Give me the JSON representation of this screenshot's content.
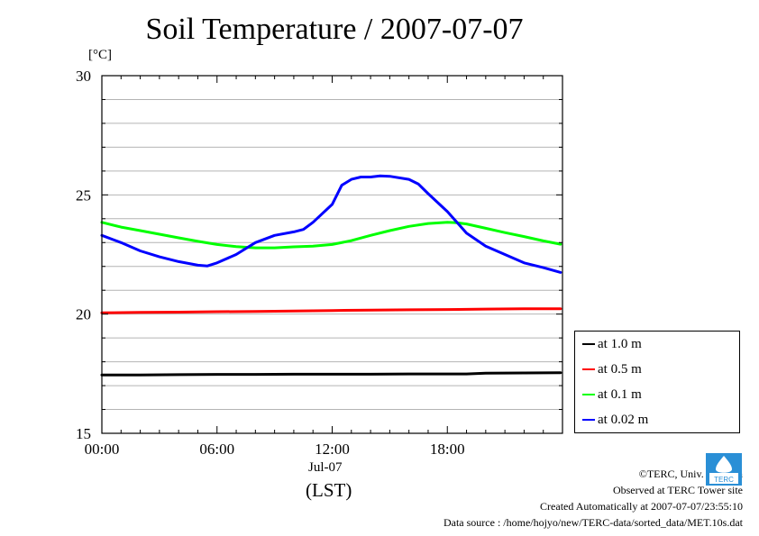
{
  "chart_data": {
    "type": "line",
    "title": "Soil Temperature / 2007-07-07",
    "ylabel": "[°C]",
    "xlabel": "(LST)",
    "date_label": "Jul-07",
    "ylim": [
      15,
      30
    ],
    "xlim": [
      0,
      24
    ],
    "yticks": [
      15,
      20,
      25,
      30
    ],
    "xticks": [
      0,
      6,
      12,
      18
    ],
    "xtick_labels": [
      "00:00",
      "06:00",
      "12:00",
      "18:00"
    ],
    "grid": true,
    "legend_position": "bottom-right, outside plot",
    "series": [
      {
        "name": "at 1.0 m",
        "color": "#000000",
        "x": [
          0,
          2,
          4,
          6,
          8,
          10,
          12,
          14,
          16,
          18,
          19,
          20,
          22,
          23.9
        ],
        "y": [
          17.45,
          17.45,
          17.46,
          17.47,
          17.47,
          17.48,
          17.48,
          17.48,
          17.49,
          17.49,
          17.49,
          17.52,
          17.53,
          17.54
        ]
      },
      {
        "name": "at 0.5 m",
        "color": "#ff0000",
        "x": [
          0,
          2,
          4,
          6,
          8,
          10,
          12,
          14,
          16,
          18,
          20,
          22,
          23.9
        ],
        "y": [
          20.05,
          20.07,
          20.08,
          20.1,
          20.11,
          20.13,
          20.15,
          20.17,
          20.18,
          20.19,
          20.21,
          20.22,
          20.22
        ]
      },
      {
        "name": "at 0.1 m",
        "color": "#00ff00",
        "x": [
          0,
          1,
          2,
          3,
          4,
          5,
          6,
          7,
          8,
          9,
          10,
          11,
          12,
          13,
          14,
          15,
          16,
          17,
          18,
          18.5,
          19,
          20,
          21,
          22,
          23,
          23.9
        ],
        "y": [
          23.85,
          23.65,
          23.5,
          23.35,
          23.2,
          23.05,
          22.92,
          22.83,
          22.78,
          22.78,
          22.82,
          22.85,
          22.92,
          23.08,
          23.3,
          23.5,
          23.68,
          23.8,
          23.85,
          23.83,
          23.78,
          23.6,
          23.42,
          23.25,
          23.07,
          22.93
        ]
      },
      {
        "name": "at 0.02 m",
        "color": "#0000ff",
        "x": [
          0,
          1,
          2,
          3,
          4,
          5,
          5.5,
          6,
          7,
          8,
          9,
          10,
          10.5,
          11,
          12,
          12.5,
          13,
          13.5,
          14,
          14.5,
          15,
          16,
          16.5,
          17,
          18,
          19,
          20,
          21,
          22,
          23,
          23.9
        ],
        "y": [
          23.3,
          23.0,
          22.65,
          22.4,
          22.2,
          22.05,
          22.02,
          22.15,
          22.5,
          23.0,
          23.3,
          23.45,
          23.55,
          23.85,
          24.6,
          25.4,
          25.65,
          25.75,
          25.75,
          25.8,
          25.78,
          25.65,
          25.45,
          25.05,
          24.3,
          23.4,
          22.85,
          22.5,
          22.15,
          21.95,
          21.75
        ]
      }
    ]
  },
  "credits": {
    "copyright": "©TERC, Univ. Tsukuba",
    "observed": "Observed at TERC Tower site",
    "created": "Created Automatically at 2007-07-07/23:55:10",
    "source": "Data source : /home/hojyo/new/TERC-data/sorted_data/MET.10s.dat"
  },
  "logo": {
    "text": "TERC",
    "color": "#2a8fd6"
  }
}
